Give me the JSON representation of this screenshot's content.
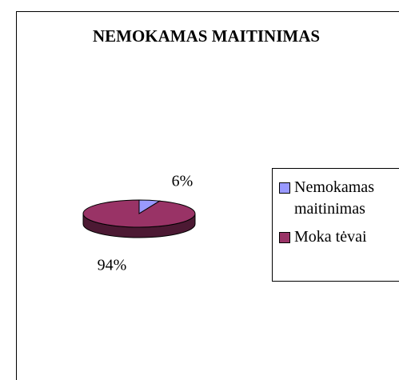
{
  "chart_data": {
    "type": "pie",
    "title": "NEMOKAMAS MAITINIMAS",
    "categories": [
      "Nemokamas maitinimas",
      "Moka tėvai"
    ],
    "values": [
      6,
      94
    ],
    "value_labels": [
      "6%",
      "94%"
    ],
    "colors": [
      "#9999ff",
      "#993366"
    ],
    "legend": "right"
  }
}
